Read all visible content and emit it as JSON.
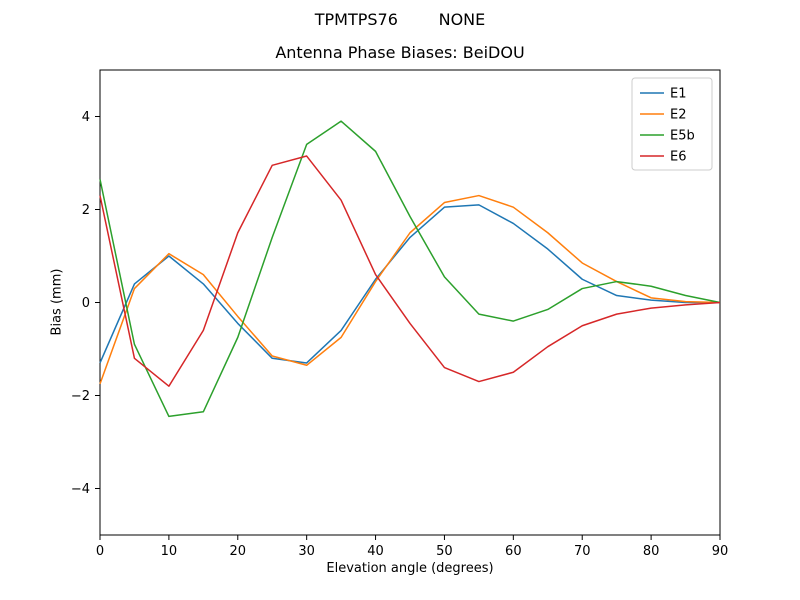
{
  "chart_data": {
    "type": "line",
    "title": "TPMTPS76        NONE",
    "subtitle": "Antenna Phase Biases: BeiDOU",
    "xlabel": "Elevation angle (degrees)",
    "ylabel": "Bias (mm)",
    "xlim": [
      0,
      90
    ],
    "ylim": [
      -5,
      5
    ],
    "xticks": [
      0,
      10,
      20,
      30,
      40,
      50,
      60,
      70,
      80,
      90
    ],
    "yticks": [
      -4,
      -2,
      0,
      2,
      4
    ],
    "yticklabels": [
      "−4",
      "−2",
      "0",
      "2",
      "4"
    ],
    "grid": false,
    "legend_position": "upper right",
    "x": [
      0,
      5,
      10,
      15,
      20,
      25,
      30,
      35,
      40,
      45,
      50,
      55,
      60,
      65,
      70,
      75,
      80,
      85,
      90
    ],
    "series": [
      {
        "name": "E1",
        "color": "#1f77b4",
        "values": [
          -1.3,
          0.4,
          1.0,
          0.4,
          -0.45,
          -1.2,
          -1.3,
          -0.6,
          0.5,
          1.4,
          2.05,
          2.1,
          1.7,
          1.15,
          0.5,
          0.15,
          0.05,
          0.0,
          0.0
        ]
      },
      {
        "name": "E2",
        "color": "#ff7f0e",
        "values": [
          -1.75,
          0.3,
          1.05,
          0.6,
          -0.3,
          -1.15,
          -1.35,
          -0.75,
          0.45,
          1.5,
          2.15,
          2.3,
          2.05,
          1.5,
          0.85,
          0.45,
          0.1,
          0.02,
          0.0
        ]
      },
      {
        "name": "E5b",
        "color": "#2ca02c",
        "values": [
          2.65,
          -0.9,
          -2.45,
          -2.35,
          -0.75,
          1.4,
          3.4,
          3.9,
          3.25,
          1.85,
          0.55,
          -0.25,
          -0.4,
          -0.15,
          0.3,
          0.45,
          0.35,
          0.15,
          0.0
        ]
      },
      {
        "name": "E6",
        "color": "#d62728",
        "values": [
          2.3,
          -1.2,
          -1.8,
          -0.6,
          1.5,
          2.95,
          3.15,
          2.2,
          0.6,
          -0.45,
          -1.4,
          -1.7,
          -1.5,
          -0.95,
          -0.5,
          -0.25,
          -0.12,
          -0.05,
          0.0
        ]
      }
    ]
  }
}
